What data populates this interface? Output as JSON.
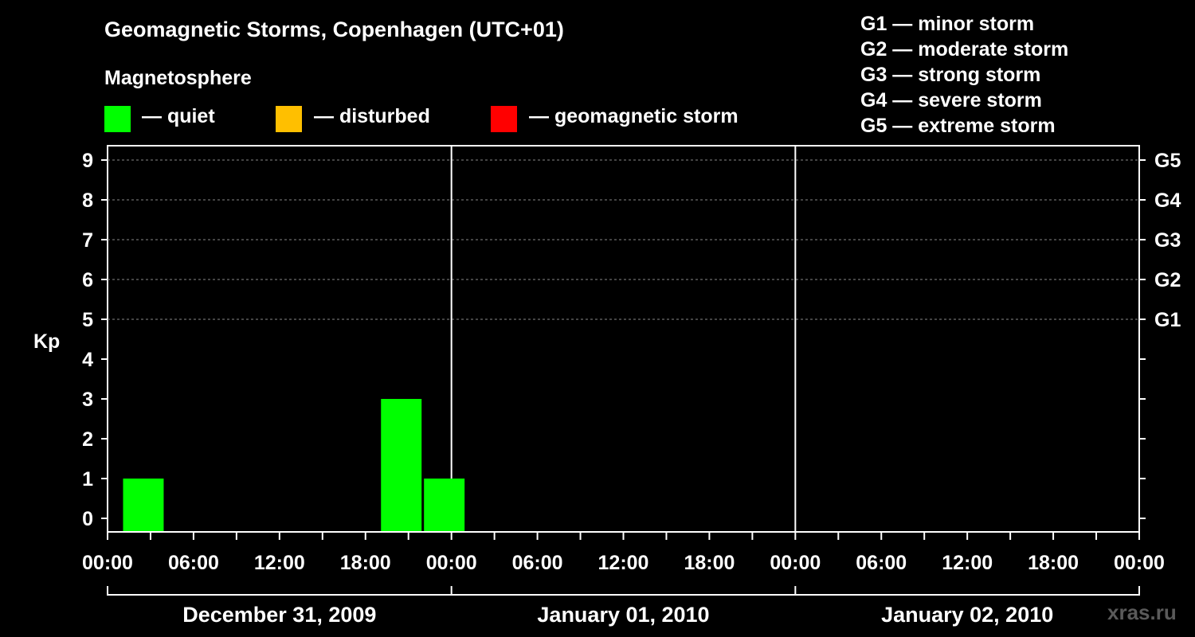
{
  "title": "Geomagnetic Storms, Copenhagen (UTC+01)",
  "legend": {
    "heading": "Magnetosphere",
    "items": [
      {
        "label": "— quiet",
        "color": "#00ff00"
      },
      {
        "label": "— disturbed",
        "color": "#ffbf00"
      },
      {
        "label": "— geomagnetic storm",
        "color": "#ff0000"
      }
    ]
  },
  "storm_scale": [
    "G1 — minor storm",
    "G2 — moderate storm",
    "G3 — strong storm",
    "G4 — severe storm",
    "G5 — extreme storm"
  ],
  "watermark": "xras.ru",
  "chart_data": {
    "type": "bar",
    "ylabel": "Kp",
    "ylim": [
      0,
      9
    ],
    "yticks": [
      0,
      1,
      2,
      3,
      4,
      5,
      6,
      7,
      8,
      9
    ],
    "right_ticks": [
      {
        "label": "G1",
        "kp": 5
      },
      {
        "label": "G2",
        "kp": 6
      },
      {
        "label": "G3",
        "kp": 7
      },
      {
        "label": "G4",
        "kp": 8
      },
      {
        "label": "G5",
        "kp": 9
      }
    ],
    "grid": "dashed horizontal at Kp 5-9",
    "x_range_hours": [
      0,
      72
    ],
    "xtick_labels": [
      "00:00",
      "06:00",
      "12:00",
      "18:00",
      "00:00",
      "06:00",
      "12:00",
      "18:00",
      "00:00",
      "06:00",
      "12:00",
      "18:00",
      "00:00"
    ],
    "day_labels": [
      "December 31, 2009",
      "January 01, 2010",
      "January 02, 2010"
    ],
    "bar_width_hours": 3,
    "series": [
      {
        "status": "quiet",
        "color": "#00ff00",
        "points": [
          {
            "start": "2009-12-31 01:00",
            "kp": 1
          },
          {
            "start": "2009-12-31 19:00",
            "kp": 3
          },
          {
            "start": "2009-12-31 22:00",
            "kp": 1
          }
        ]
      }
    ]
  }
}
